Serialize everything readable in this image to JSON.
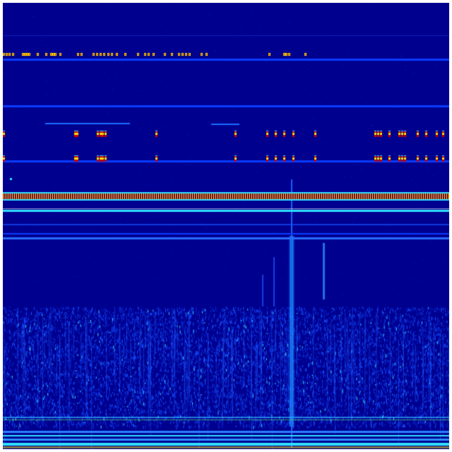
{
  "colormap": "jet",
  "colors": {
    "background": "#00008f",
    "line_blue": "#0a3cff",
    "cyan": "#30e0ff",
    "yellow": "#ffe000",
    "red": "#c80000",
    "green": "#60ff60"
  }
}
